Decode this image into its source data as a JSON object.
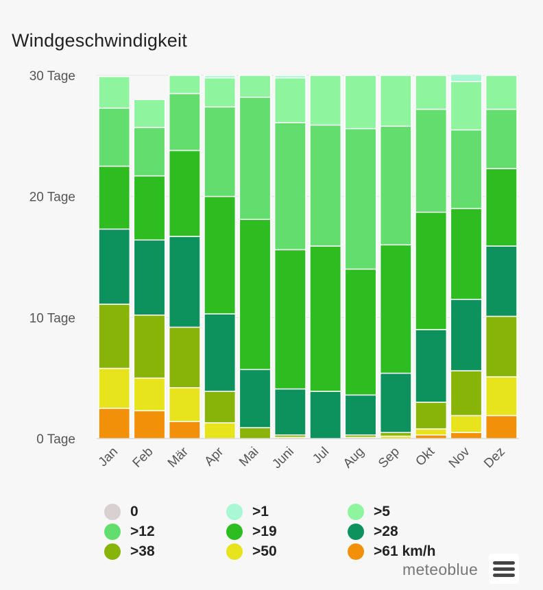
{
  "header": {
    "title": "Windgeschwindigkeit"
  },
  "chart_data": {
    "type": "bar",
    "stacked": true,
    "title": "Windgeschwindigkeit",
    "ylabel": "",
    "ylim": [
      0,
      30
    ],
    "ytick_labels": [
      "0 Tage",
      "10 Tage",
      "20 Tage",
      "30 Tage"
    ],
    "ytick_values": [
      0,
      10,
      20,
      30
    ],
    "categories": [
      "Jan",
      "Feb",
      "Mär",
      "Apr",
      "Mai",
      "Juni",
      "Jul",
      "Aug",
      "Sep",
      "Okt",
      "Nov",
      "Dez"
    ],
    "series": [
      {
        "name": "0",
        "color": "#d9d0d2",
        "values": [
          0,
          0,
          0,
          0,
          0,
          0,
          0,
          0,
          0,
          0,
          0,
          0
        ]
      },
      {
        "name": ">61 km/h",
        "color": "#f29009",
        "values": [
          2.5,
          2.3,
          1.4,
          0,
          0,
          0,
          0,
          0,
          0,
          0.3,
          0.5,
          1.9
        ]
      },
      {
        "name": ">50",
        "color": "#e7e31c",
        "values": [
          3.3,
          2.7,
          2.8,
          1.3,
          0,
          0.1,
          0,
          0.1,
          0.2,
          0.5,
          1.4,
          3.2
        ]
      },
      {
        "name": ">38",
        "color": "#88b309",
        "values": [
          5.3,
          5.2,
          5.0,
          2.6,
          0.9,
          0.2,
          0,
          0.2,
          0.3,
          2.2,
          3.7,
          5.0
        ]
      },
      {
        "name": ">28",
        "color": "#0d925e",
        "values": [
          6.2,
          6.2,
          7.5,
          6.4,
          4.8,
          3.8,
          3.9,
          3.3,
          4.9,
          6.0,
          5.9,
          5.8
        ]
      },
      {
        "name": ">19",
        "color": "#2ebd20",
        "values": [
          5.2,
          5.3,
          7.1,
          9.7,
          12.4,
          11.5,
          12.0,
          10.4,
          10.6,
          9.7,
          7.5,
          6.4
        ]
      },
      {
        "name": ">12",
        "color": "#63de6e",
        "values": [
          4.8,
          4.0,
          4.7,
          7.4,
          10.1,
          10.5,
          10.0,
          11.6,
          9.8,
          8.5,
          6.5,
          4.9
        ]
      },
      {
        "name": ">5",
        "color": "#8ef59e",
        "values": [
          2.6,
          2.3,
          1.5,
          2.4,
          1.8,
          3.7,
          4.1,
          4.4,
          4.2,
          2.8,
          4.0,
          2.8
        ]
      },
      {
        "name": ">1",
        "color": "#a8f8d3",
        "values": [
          0,
          0,
          0,
          0.2,
          0,
          0.2,
          0,
          0,
          0,
          0,
          0.6,
          0
        ]
      }
    ]
  },
  "legend": {
    "items": [
      {
        "label": "0",
        "color": "#d9d0d2"
      },
      {
        "label": ">1",
        "color": "#a8f8d3"
      },
      {
        "label": ">5",
        "color": "#8ef59e"
      },
      {
        "label": ">12",
        "color": "#63de6e"
      },
      {
        "label": ">19",
        "color": "#2ebd20"
      },
      {
        "label": ">28",
        "color": "#0d925e"
      },
      {
        "label": ">38",
        "color": "#88b309"
      },
      {
        "label": ">50",
        "color": "#e7e31c"
      },
      {
        "label": ">61 km/h",
        "color": "#f29009"
      }
    ]
  },
  "footer": {
    "credit": "meteoblue",
    "menu_icon": "hamburger-menu-icon"
  }
}
